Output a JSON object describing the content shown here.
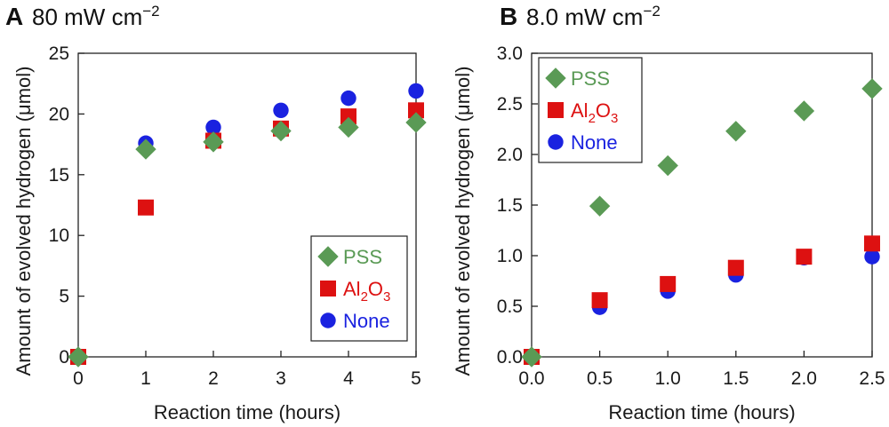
{
  "chart_data": [
    {
      "type": "scatter",
      "panel_letter": "A",
      "title_value": "80 mW cm",
      "title_exponent": "−2",
      "xlabel": "Reaction time (hours)",
      "ylabel": "Amount of evolved hydrogen (μmol)",
      "xlim": [
        0,
        5
      ],
      "ylim": [
        0,
        25
      ],
      "x_ticks": [
        "0",
        "1",
        "2",
        "3",
        "4",
        "5"
      ],
      "y_ticks": [
        "0",
        "5",
        "10",
        "15",
        "20",
        "25"
      ],
      "legend_position": "bottom-right",
      "series": [
        {
          "name": "PSS",
          "legend_text": "PSS",
          "marker": "diamond",
          "color": "#5a9a55",
          "x": [
            0,
            1,
            2,
            3,
            4,
            5
          ],
          "y": [
            0,
            17.1,
            17.7,
            18.6,
            18.9,
            19.3
          ]
        },
        {
          "name": "Al2O3",
          "legend_text": "Al",
          "legend_sub1": "2",
          "legend_mid": "O",
          "legend_sub2": "3",
          "marker": "square",
          "color": "#dd1111",
          "x": [
            0,
            1,
            2,
            3,
            4,
            5
          ],
          "y": [
            0,
            12.3,
            17.8,
            18.8,
            19.8,
            20.3
          ]
        },
        {
          "name": "None",
          "legend_text": "None",
          "marker": "circle",
          "color": "#1a22e0",
          "x": [
            0,
            1,
            2,
            3,
            4,
            5
          ],
          "y": [
            0,
            17.6,
            18.9,
            20.3,
            21.3,
            21.9
          ]
        }
      ]
    },
    {
      "type": "scatter",
      "panel_letter": "B",
      "title_value": "8.0 mW cm",
      "title_exponent": "−2",
      "xlabel": "Reaction time (hours)",
      "ylabel": "Amount of evolved hydrogen (μmol)",
      "xlim": [
        0,
        2.5
      ],
      "ylim": [
        0,
        3.0
      ],
      "x_ticks": [
        "0.0",
        "0.5",
        "1.0",
        "1.5",
        "2.0",
        "2.5"
      ],
      "y_ticks": [
        "0.0",
        "0.5",
        "1.0",
        "1.5",
        "2.0",
        "2.5",
        "3.0"
      ],
      "legend_position": "top-left",
      "series": [
        {
          "name": "PSS",
          "legend_text": "PSS",
          "marker": "diamond",
          "color": "#5a9a55",
          "x": [
            0,
            0.5,
            1.0,
            1.5,
            2.0,
            2.5
          ],
          "y": [
            0,
            1.49,
            1.89,
            2.23,
            2.43,
            2.65
          ]
        },
        {
          "name": "Al2O3",
          "legend_text": "Al",
          "legend_sub1": "2",
          "legend_mid": "O",
          "legend_sub2": "3",
          "marker": "square",
          "color": "#dd1111",
          "x": [
            0,
            0.5,
            1.0,
            1.5,
            2.0,
            2.5
          ],
          "y": [
            0,
            0.56,
            0.72,
            0.88,
            0.99,
            1.12
          ]
        },
        {
          "name": "None",
          "legend_text": "None",
          "marker": "circle",
          "color": "#1a22e0",
          "x": [
            0,
            0.5,
            1.0,
            1.5,
            2.0,
            2.5
          ],
          "y": [
            0,
            0.49,
            0.65,
            0.81,
            0.98,
            0.99
          ]
        }
      ]
    }
  ]
}
